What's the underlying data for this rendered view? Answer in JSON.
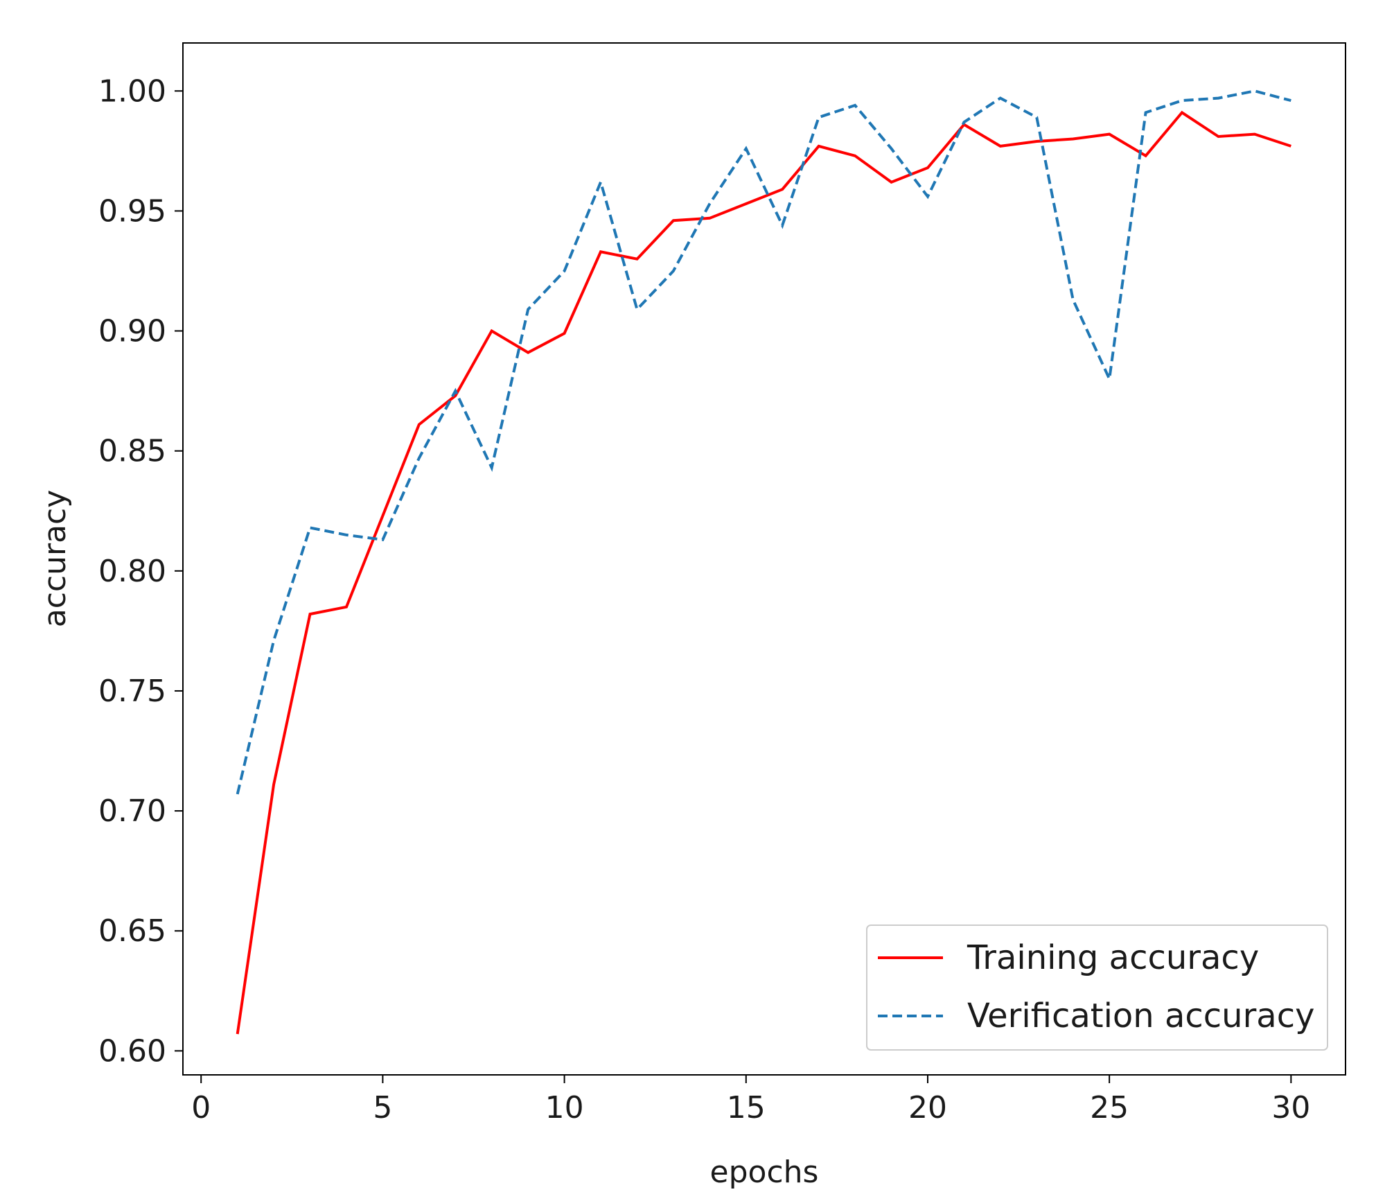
{
  "chart_data": {
    "type": "line",
    "title": "",
    "xlabel": "epochs",
    "ylabel": "accuracy",
    "xlim": [
      -0.5,
      31.5
    ],
    "ylim": [
      0.59,
      1.02
    ],
    "xticks": [
      0,
      5,
      10,
      15,
      20,
      25,
      30
    ],
    "xtick_labels": [
      "0",
      "5",
      "10",
      "15",
      "20",
      "25",
      "30"
    ],
    "yticks": [
      0.6,
      0.65,
      0.7,
      0.75,
      0.8,
      0.85,
      0.9,
      0.95,
      1.0
    ],
    "ytick_labels": [
      "0.60",
      "0.65",
      "0.70",
      "0.75",
      "0.80",
      "0.85",
      "0.90",
      "0.95",
      "1.00"
    ],
    "grid": false,
    "legend_position": "lower-right",
    "x": [
      1,
      2,
      3,
      4,
      5,
      6,
      7,
      8,
      9,
      10,
      11,
      12,
      13,
      14,
      15,
      16,
      17,
      18,
      19,
      20,
      21,
      22,
      23,
      24,
      25,
      26,
      27,
      28,
      29,
      30
    ],
    "series": [
      {
        "name": "Training accuracy",
        "color": "#ff0000",
        "style": "solid",
        "values": [
          0.607,
          0.711,
          0.782,
          0.785,
          0.823,
          0.861,
          0.873,
          0.9,
          0.891,
          0.899,
          0.933,
          0.93,
          0.946,
          0.947,
          0.953,
          0.959,
          0.977,
          0.973,
          0.962,
          0.968,
          0.986,
          0.977,
          0.979,
          0.98,
          0.982,
          0.973,
          0.991,
          0.981,
          0.982,
          0.977
        ]
      },
      {
        "name": "Verification accuracy",
        "color": "#1f77b4",
        "style": "dashed",
        "values": [
          0.707,
          0.771,
          0.818,
          0.815,
          0.813,
          0.847,
          0.875,
          0.843,
          0.909,
          0.925,
          0.962,
          0.909,
          0.925,
          0.953,
          0.976,
          0.944,
          0.989,
          0.994,
          0.976,
          0.956,
          0.987,
          0.997,
          0.989,
          0.913,
          0.88,
          0.991,
          0.996,
          0.997,
          1.0,
          0.996
        ]
      }
    ]
  }
}
